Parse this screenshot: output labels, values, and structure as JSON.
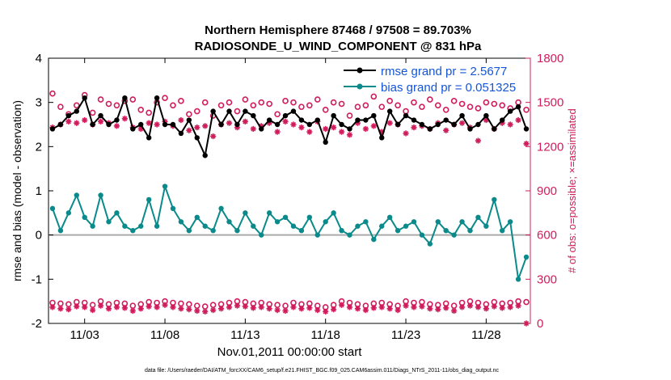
{
  "chart_data": {
    "type": "line",
    "title_line1": "Northern Hemisphere 87468 / 97508 = 89.703%",
    "title_line2": "RADIOSONDE_U_WIND_COMPONENT @ 831 hPa",
    "ylabel": "rmse and bias (model - observation)",
    "ylabel_right": "# of obs: o=possible; ×=assimilated",
    "xlabel": "Nov.01,2011 00:00:00 start",
    "footnote": "data file: /Users/raeder/DAI/ATM_forcXX/CAM6_setup/f.e21.FHIST_BGC.f09_025.CAM6assim.011/Diags_NTrS_2011-11/obs_diag_output.nc",
    "ylim": [
      -2,
      4
    ],
    "ylim_right": [
      0,
      1800
    ],
    "xlim": [
      0.5,
      60.5
    ],
    "y_ticks": [
      "-2",
      "-1",
      "0",
      "1",
      "2",
      "3",
      "4"
    ],
    "y_ticks_right": [
      "0",
      "300",
      "600",
      "900",
      "1200",
      "1500",
      "1800"
    ],
    "x_ticks": [
      {
        "x": 5,
        "label": "11/03"
      },
      {
        "x": 15,
        "label": "11/08"
      },
      {
        "x": 25,
        "label": "11/13"
      },
      {
        "x": 35,
        "label": "11/18"
      },
      {
        "x": 45,
        "label": "11/23"
      },
      {
        "x": 55,
        "label": "11/28"
      }
    ],
    "colors": {
      "rmse": "#000000",
      "bias": "#0a8a8a",
      "obs": "#d01c5c",
      "zero": "#aaaaaa",
      "legend_text": "#1455d8"
    },
    "legend": [
      {
        "name": "rmse grand pr = 2.5677",
        "series": "rmse"
      },
      {
        "name": "bias grand pr = 0.051325",
        "series": "bias"
      }
    ],
    "x": [
      1,
      2,
      3,
      4,
      5,
      6,
      7,
      8,
      9,
      10,
      11,
      12,
      13,
      14,
      15,
      16,
      17,
      18,
      19,
      20,
      21,
      22,
      23,
      24,
      25,
      26,
      27,
      28,
      29,
      30,
      31,
      32,
      33,
      34,
      35,
      36,
      37,
      38,
      39,
      40,
      41,
      42,
      43,
      44,
      45,
      46,
      47,
      48,
      49,
      50,
      51,
      52,
      53,
      54,
      55,
      56,
      57,
      58,
      59,
      60
    ],
    "series": [
      {
        "name": "rmse",
        "values": [
          2.4,
          2.5,
          2.7,
          2.8,
          3.1,
          2.5,
          2.7,
          2.5,
          2.6,
          3.1,
          2.4,
          2.5,
          2.2,
          3.1,
          2.5,
          2.5,
          2.3,
          2.6,
          2.2,
          1.8,
          2.8,
          2.5,
          2.8,
          2.5,
          2.8,
          2.7,
          2.4,
          2.6,
          2.5,
          2.7,
          2.8,
          2.6,
          2.5,
          2.6,
          2.1,
          2.7,
          2.5,
          2.4,
          2.6,
          2.6,
          2.7,
          2.2,
          2.8,
          2.5,
          2.7,
          2.6,
          2.5,
          2.4,
          2.5,
          2.6,
          2.5,
          2.7,
          2.4,
          2.5,
          2.7,
          2.4,
          2.6,
          2.8,
          2.9,
          2.4
        ]
      },
      {
        "name": "bias",
        "values": [
          0.6,
          0.1,
          0.5,
          0.9,
          0.4,
          0.2,
          0.9,
          0.3,
          0.5,
          0.2,
          0.1,
          0.2,
          0.8,
          0.2,
          1.1,
          0.6,
          0.3,
          0.1,
          0.4,
          0.2,
          0.1,
          0.6,
          0.3,
          0.1,
          0.5,
          0.2,
          0.0,
          0.5,
          0.3,
          0.4,
          0.2,
          0.1,
          0.4,
          0.0,
          0.3,
          0.5,
          0.1,
          0.0,
          0.2,
          0.3,
          -0.1,
          0.2,
          0.4,
          0.1,
          0.2,
          0.3,
          0.0,
          -0.2,
          0.3,
          0.1,
          0.0,
          0.3,
          0.1,
          0.4,
          0.2,
          0.8,
          0.1,
          0.3,
          -1.0,
          -0.5
        ]
      },
      {
        "name": "obs_possible_right",
        "values": [
          1560,
          1470,
          1420,
          1480,
          1550,
          1430,
          1520,
          1490,
          1480,
          1510,
          1520,
          1450,
          1430,
          1500,
          1530,
          1480,
          1510,
          1420,
          1440,
          1500,
          1410,
          1480,
          1500,
          1440,
          1520,
          1480,
          1500,
          1490,
          1420,
          1510,
          1500,
          1470,
          1480,
          1520,
          1450,
          1500,
          1490,
          1410,
          1470,
          1480,
          1540,
          1470,
          1510,
          1480,
          1440,
          1500,
          1470,
          1520,
          1480,
          1450,
          1510,
          1490,
          1470,
          1460,
          1500,
          1490,
          1480,
          1460,
          1500,
          1450
        ]
      },
      {
        "name": "obs_assimilated_right",
        "values": [
          1330,
          1350,
          1370,
          1360,
          1380,
          1350,
          1370,
          1360,
          1340,
          1390,
          1330,
          1320,
          1360,
          1350,
          1370,
          1340,
          1380,
          1310,
          1330,
          1340,
          1270,
          1350,
          1360,
          1330,
          1370,
          1320,
          1340,
          1360,
          1300,
          1370,
          1350,
          1330,
          1300,
          1370,
          1320,
          1330,
          1300,
          1280,
          1360,
          1320,
          1340,
          1300,
          1360,
          1350,
          1290,
          1330,
          1340,
          1320,
          1360,
          1310,
          1350,
          1360,
          1330,
          1240,
          1380,
          1320,
          1360,
          1350,
          1380,
          1220
        ]
      },
      {
        "name": "obs_possible_bottom",
        "values": [
          140,
          135,
          130,
          145,
          140,
          125,
          150,
          130,
          140,
          135,
          120,
          130,
          145,
          140,
          150,
          140,
          135,
          130,
          120,
          115,
          125,
          130,
          140,
          150,
          145,
          135,
          140,
          130,
          125,
          120,
          140,
          130,
          135,
          120,
          110,
          125,
          150,
          140,
          130,
          120,
          135,
          140,
          130,
          120,
          150,
          140,
          145,
          130,
          125,
          135,
          120,
          140,
          150,
          140,
          130,
          145,
          135,
          140,
          150,
          145
        ]
      },
      {
        "name": "obs_assimilated_bottom",
        "values": [
          110,
          100,
          95,
          115,
          110,
          90,
          120,
          100,
          110,
          105,
          85,
          100,
          115,
          110,
          125,
          110,
          100,
          95,
          85,
          80,
          90,
          100,
          110,
          120,
          115,
          105,
          110,
          100,
          90,
          85,
          110,
          100,
          105,
          90,
          80,
          95,
          125,
          110,
          100,
          90,
          105,
          110,
          100,
          90,
          120,
          110,
          115,
          100,
          95,
          105,
          85,
          110,
          120,
          110,
          100,
          115,
          105,
          110,
          120,
          0
        ]
      }
    ]
  }
}
